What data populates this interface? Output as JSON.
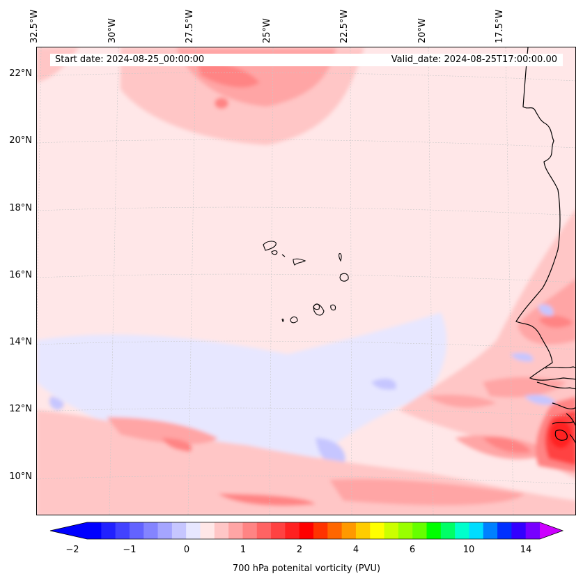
{
  "map": {
    "start_date_text": "Start date: 2024-08-25_00:00:00",
    "valid_date_text": "Valid_date: 2024-08-25T17:00:00.00",
    "background_color": "#ffe7e8",
    "coastline_color": "#000000",
    "gridline_color": "#c8c8c8",
    "longitude_labels": [
      "32.5°W",
      "30°W",
      "27.5°W",
      "25°W",
      "22.5°W",
      "20°W",
      "17.5°W"
    ],
    "latitude_labels": [
      "22°N",
      "20°N",
      "18°N",
      "16°N",
      "14°N",
      "12°N",
      "10°N"
    ]
  },
  "colorbar": {
    "title": "700 hPa potenital vorticity (PVU)",
    "tick_labels": [
      "−2",
      "−1",
      "0",
      "1",
      "2",
      "4",
      "6",
      "10",
      "14"
    ],
    "colors": [
      "#0000ff",
      "#2121ff",
      "#4242ff",
      "#6363ff",
      "#8484ff",
      "#a5a5ff",
      "#c6c6ff",
      "#e7e7ff",
      "#ffe7e7",
      "#ffc6c6",
      "#ffa5a5",
      "#ff8484",
      "#ff6363",
      "#ff4242",
      "#ff2121",
      "#ff0000",
      "#ff3300",
      "#ff6600",
      "#ff9900",
      "#ffcc00",
      "#ffff00",
      "#ccff00",
      "#99ff00",
      "#66ff00",
      "#00ff00",
      "#00ff66",
      "#00ffcc",
      "#00ddff",
      "#0080ff",
      "#0030ff",
      "#3300ff",
      "#7700ff"
    ],
    "under_color": "#0000ff",
    "over_color": "#cc00ff"
  }
}
